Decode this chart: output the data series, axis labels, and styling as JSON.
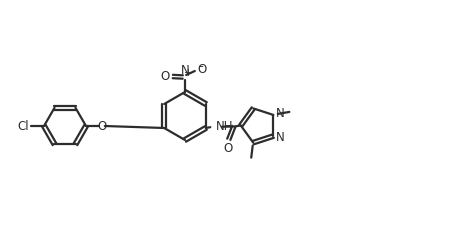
{
  "bg_color": "#ffffff",
  "line_color": "#2d2d2d",
  "line_width": 1.6,
  "font_size": 8.5,
  "figsize": [
    4.6,
    2.41
  ],
  "dpi": 100,
  "xlim": [
    0,
    46
  ],
  "ylim": [
    0,
    24.1
  ]
}
